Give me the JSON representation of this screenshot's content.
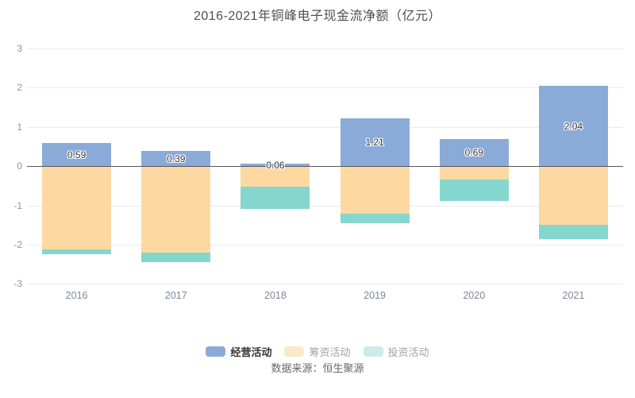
{
  "title": "2016-2021年铜峰电子现金流净额（亿元）",
  "source": "数据来源：恒生聚源",
  "chart_data": {
    "type": "bar",
    "stacked": true,
    "title": "2016-2021年铜峰电子现金流净额（亿元）",
    "categories": [
      "2016",
      "2017",
      "2018",
      "2019",
      "2020",
      "2021"
    ],
    "series": [
      {
        "name": "经营活动",
        "color": "#8aabd8",
        "values": [
          0.59,
          0.39,
          0.06,
          1.21,
          0.69,
          2.04
        ],
        "labels": [
          "0.59",
          "0.39",
          "0.06",
          "1.21",
          "0.69",
          "2.04"
        ]
      },
      {
        "name": "筹资活动",
        "color": "#fdd9a1",
        "values": [
          -2.13,
          -2.21,
          -0.53,
          -1.22,
          -0.35,
          -1.49
        ]
      },
      {
        "name": "投资活动",
        "color": "#85d6cf",
        "values": [
          -0.12,
          -0.24,
          -0.56,
          -0.24,
          -0.53,
          -0.36
        ]
      }
    ],
    "xlabel": "",
    "ylabel": "",
    "ylim": [
      -3,
      3
    ],
    "yticks": [
      3,
      2,
      1,
      0,
      -1,
      -2,
      -3
    ],
    "grid": true,
    "legend_position": "bottom"
  },
  "legend": {
    "items": [
      {
        "label": "经营活动",
        "swatch": "#8aabd8",
        "active": true
      },
      {
        "label": "筹资活动",
        "swatch": "#fbe8c9",
        "active": false
      },
      {
        "label": "投资活动",
        "swatch": "#cfeae7",
        "active": false
      }
    ]
  },
  "colors": {
    "background": "#ffffff",
    "zero_line": "#55565e",
    "gridline": "#e6ebf5",
    "axis_label": "#8b93a6",
    "title_text": "#4e4e4e",
    "value_label": "#333333",
    "source_text": "#666666"
  }
}
